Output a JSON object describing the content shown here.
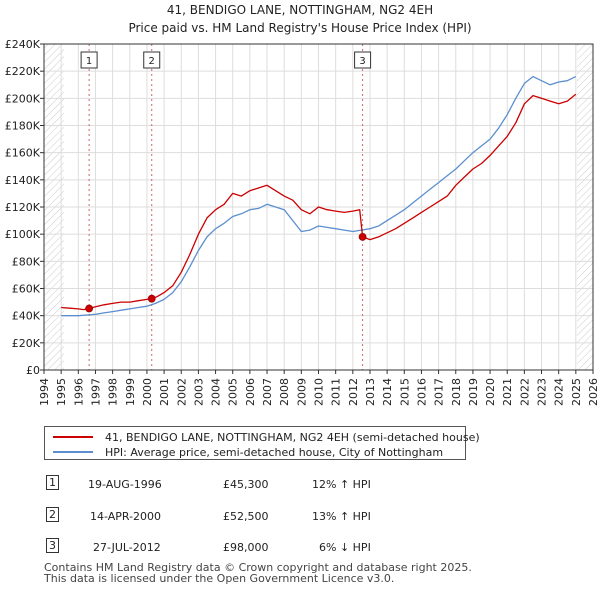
{
  "chart_data": {
    "type": "line",
    "title": "41, BENDIGO LANE, NOTTINGHAM, NG2 4EH",
    "subtitle": "Price paid vs. HM Land Registry's House Price Index (HPI)",
    "xlim": [
      1994,
      2026
    ],
    "ylim": [
      0,
      240000
    ],
    "grid": true,
    "x_ticks": [
      "1994",
      "1995",
      "1996",
      "1997",
      "1998",
      "1999",
      "2000",
      "2001",
      "2002",
      "2003",
      "2004",
      "2005",
      "2006",
      "2007",
      "2008",
      "2009",
      "2010",
      "2011",
      "2012",
      "2013",
      "2014",
      "2015",
      "2016",
      "2017",
      "2018",
      "2019",
      "2020",
      "2021",
      "2022",
      "2023",
      "2024",
      "2025",
      "2026"
    ],
    "y_ticks": [
      {
        "value": 0,
        "label": "£0"
      },
      {
        "value": 20000,
        "label": "£20K"
      },
      {
        "value": 40000,
        "label": "£40K"
      },
      {
        "value": 60000,
        "label": "£60K"
      },
      {
        "value": 80000,
        "label": "£80K"
      },
      {
        "value": 100000,
        "label": "£100K"
      },
      {
        "value": 120000,
        "label": "£120K"
      },
      {
        "value": 140000,
        "label": "£140K"
      },
      {
        "value": 160000,
        "label": "£160K"
      },
      {
        "value": 180000,
        "label": "£180K"
      },
      {
        "value": 200000,
        "label": "£200K"
      },
      {
        "value": 220000,
        "label": "£220K"
      },
      {
        "value": 240000,
        "label": "£240K"
      }
    ],
    "series": [
      {
        "name": "41, BENDIGO LANE, NOTTINGHAM, NG2 4EH (semi-detached house)",
        "color": "#cc0000",
        "x": [
          1995.0,
          1995.5,
          1996.0,
          1996.3,
          1996.63,
          1997.0,
          1997.5,
          1998.0,
          1998.5,
          1999.0,
          1999.5,
          2000.0,
          2000.28,
          2000.6,
          2001.0,
          2001.5,
          2002.0,
          2002.5,
          2003.0,
          2003.5,
          2004.0,
          2004.5,
          2005.0,
          2005.5,
          2006.0,
          2006.5,
          2007.0,
          2007.5,
          2008.0,
          2008.5,
          2009.0,
          2009.5,
          2010.0,
          2010.5,
          2011.0,
          2011.5,
          2012.0,
          2012.4,
          2012.57,
          2013.0,
          2013.5,
          2014.0,
          2014.5,
          2015.0,
          2015.5,
          2016.0,
          2016.5,
          2017.0,
          2017.5,
          2018.0,
          2018.5,
          2019.0,
          2019.5,
          2020.0,
          2020.5,
          2021.0,
          2021.5,
          2022.0,
          2022.5,
          2023.0,
          2023.5,
          2024.0,
          2024.5,
          2025.0
        ],
        "values": [
          46000,
          45500,
          45000,
          44500,
          45300,
          46500,
          48000,
          49000,
          50000,
          50000,
          51000,
          52000,
          52500,
          54000,
          57000,
          62000,
          72000,
          85000,
          100000,
          112000,
          118000,
          122000,
          130000,
          128000,
          132000,
          134000,
          136000,
          132000,
          128000,
          125000,
          118000,
          115000,
          120000,
          118000,
          117000,
          116000,
          117000,
          118000,
          98000,
          96000,
          98000,
          101000,
          104000,
          108000,
          112000,
          116000,
          120000,
          124000,
          128000,
          136000,
          142000,
          148000,
          152000,
          158000,
          165000,
          172000,
          182000,
          196000,
          202000,
          200000,
          198000,
          196000,
          198000,
          203000
        ]
      },
      {
        "name": "HPI: Average price, semi-detached house, City of Nottingham",
        "color": "#5b8fcf",
        "x": [
          1995.0,
          1995.5,
          1996.0,
          1996.5,
          1997.0,
          1997.5,
          1998.0,
          1998.5,
          1999.0,
          1999.5,
          2000.0,
          2000.5,
          2001.0,
          2001.5,
          2002.0,
          2002.5,
          2003.0,
          2003.5,
          2004.0,
          2004.5,
          2005.0,
          2005.5,
          2006.0,
          2006.5,
          2007.0,
          2007.5,
          2008.0,
          2008.5,
          2009.0,
          2009.5,
          2010.0,
          2010.5,
          2011.0,
          2011.5,
          2012.0,
          2012.5,
          2013.0,
          2013.5,
          2014.0,
          2014.5,
          2015.0,
          2015.5,
          2016.0,
          2016.5,
          2017.0,
          2017.5,
          2018.0,
          2018.5,
          2019.0,
          2019.5,
          2020.0,
          2020.5,
          2021.0,
          2021.5,
          2022.0,
          2022.5,
          2023.0,
          2023.5,
          2024.0,
          2024.5,
          2025.0
        ],
        "values": [
          40000,
          40000,
          40000,
          40500,
          41000,
          42000,
          43000,
          44000,
          45000,
          46000,
          47000,
          49000,
          52000,
          57000,
          65000,
          76000,
          88000,
          98000,
          104000,
          108000,
          113000,
          115000,
          118000,
          119000,
          122000,
          120000,
          118000,
          110000,
          102000,
          103000,
          106000,
          105000,
          104000,
          103000,
          102000,
          103000,
          104000,
          106000,
          110000,
          114000,
          118000,
          123000,
          128000,
          133000,
          138000,
          143000,
          148000,
          154000,
          160000,
          165000,
          170000,
          178000,
          188000,
          200000,
          211000,
          216000,
          213000,
          210000,
          212000,
          213000,
          216000
        ]
      }
    ],
    "transactions": [
      {
        "num": "1",
        "x": 1996.63,
        "value": 45300,
        "date": "19-AUG-1996",
        "price": "£45,300",
        "hpi": "12% ↑ HPI"
      },
      {
        "num": "2",
        "x": 2000.28,
        "value": 52500,
        "date": "14-APR-2000",
        "price": "£52,500",
        "hpi": "13% ↑ HPI"
      },
      {
        "num": "3",
        "x": 2012.57,
        "value": 98000,
        "date": "27-JUL-2012",
        "price": "£98,000",
        "hpi": "6% ↓ HPI"
      }
    ],
    "colors": {
      "price": "#cc0000",
      "hpi": "#5b8fcf",
      "grid": "#dddddd",
      "vline": "#cc6666",
      "hatch": "#cccccc"
    }
  },
  "footer": {
    "line1": "Contains HM Land Registry data © Crown copyright and database right 2025.",
    "line2": "This data is licensed under the Open Government Licence v3.0."
  }
}
